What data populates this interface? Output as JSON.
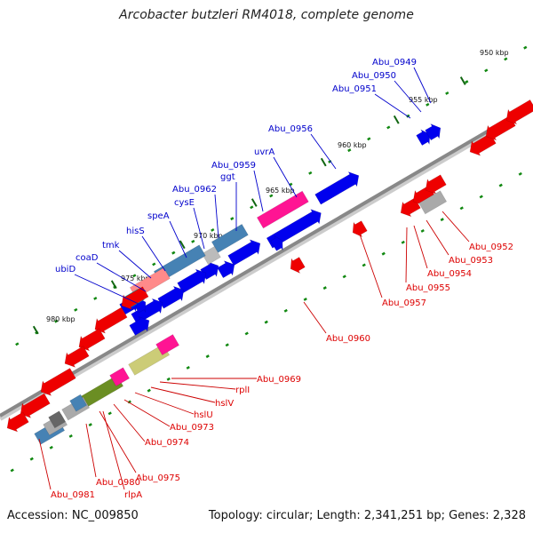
{
  "title": "Arcobacter butzleri RM4018, complete genome",
  "footer": {
    "accession": "Accession: NC_009850",
    "summary": "Topology: circular; Length: 2,341,251 bp; Genes: 2,328"
  },
  "colors": {
    "forward_label": "#0000cc",
    "reverse_label": "#dd0000",
    "backbone": "#888888",
    "tick": "#118811"
  },
  "kbp_ticks": [
    {
      "label": "950 kbp"
    },
    {
      "label": "955 kbp"
    },
    {
      "label": "960 kbp"
    },
    {
      "label": "965 kbp"
    },
    {
      "label": "970 kbp"
    },
    {
      "label": "975 kbp"
    },
    {
      "label": "980 kbp"
    }
  ],
  "forward_labels": [
    {
      "text": "Abu_0949"
    },
    {
      "text": "Abu_0950"
    },
    {
      "text": "Abu_0951"
    },
    {
      "text": "Abu_0956"
    },
    {
      "text": "uvrA"
    },
    {
      "text": "Abu_0959"
    },
    {
      "text": "ggt"
    },
    {
      "text": "Abu_0962"
    },
    {
      "text": "cysE"
    },
    {
      "text": "speA"
    },
    {
      "text": "hisS"
    },
    {
      "text": "tmk"
    },
    {
      "text": "coaD"
    },
    {
      "text": "ubiD"
    }
  ],
  "reverse_labels": [
    {
      "text": "Abu_0952"
    },
    {
      "text": "Abu_0953"
    },
    {
      "text": "Abu_0954"
    },
    {
      "text": "Abu_0955"
    },
    {
      "text": "Abu_0957"
    },
    {
      "text": "Abu_0960"
    },
    {
      "text": "Abu_0969"
    },
    {
      "text": "rplI"
    },
    {
      "text": "hslV"
    },
    {
      "text": "hslU"
    },
    {
      "text": "Abu_0973"
    },
    {
      "text": "Abu_0974"
    },
    {
      "text": "Abu_0975"
    },
    {
      "text": "Abu_0980"
    },
    {
      "text": "rlpA"
    },
    {
      "text": "Abu_0981"
    }
  ]
}
